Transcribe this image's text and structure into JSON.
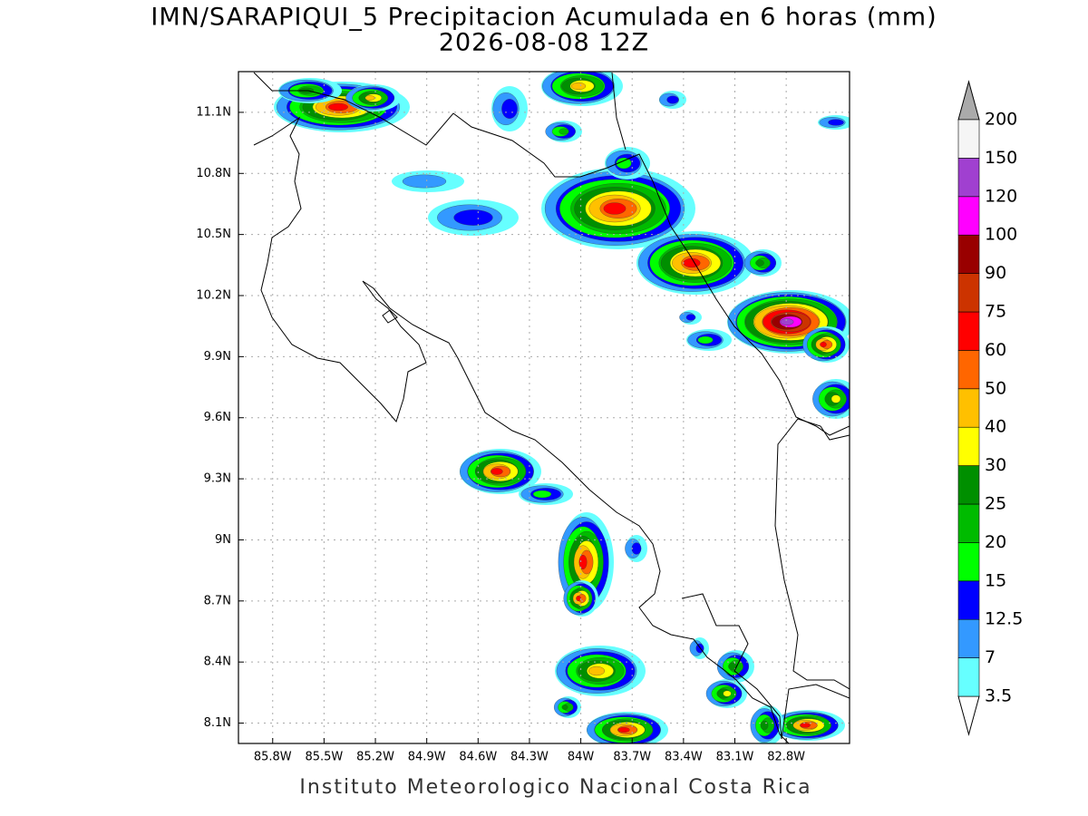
{
  "title": "IMN/SARAPIQUI_5 Precipitacion Acumulada en 6 horas (mm)",
  "subtitle": "2026-08-08 12Z",
  "footer": "Instituto Meteorologico Nacional Costa Rica",
  "map": {
    "xlim": [
      -86.0,
      -82.43
    ],
    "ylim": [
      8.0,
      11.3
    ],
    "grid": true,
    "xticks": [
      {
        "value": -85.8,
        "label": "85.8W"
      },
      {
        "value": -85.5,
        "label": "85.5W"
      },
      {
        "value": -85.2,
        "label": "85.2W"
      },
      {
        "value": -84.9,
        "label": "84.9W"
      },
      {
        "value": -84.6,
        "label": "84.6W"
      },
      {
        "value": -84.3,
        "label": "84.3W"
      },
      {
        "value": -84.0,
        "label": "84W"
      },
      {
        "value": -83.7,
        "label": "83.7W"
      },
      {
        "value": -83.4,
        "label": "83.4W"
      },
      {
        "value": -83.1,
        "label": "83.1W"
      },
      {
        "value": -82.8,
        "label": "82.8W"
      }
    ],
    "yticks": [
      {
        "value": 11.1,
        "label": "11.1N"
      },
      {
        "value": 10.8,
        "label": "10.8N"
      },
      {
        "value": 10.5,
        "label": "10.5N"
      },
      {
        "value": 10.2,
        "label": "10.2N"
      },
      {
        "value": 9.9,
        "label": "9.9N"
      },
      {
        "value": 9.6,
        "label": "9.6N"
      },
      {
        "value": 9.3,
        "label": "9.3N"
      },
      {
        "value": 9.0,
        "label": "9N"
      },
      {
        "value": 8.7,
        "label": "8.7N"
      },
      {
        "value": 8.4,
        "label": "8.4N"
      },
      {
        "value": 8.1,
        "label": "8.1N"
      }
    ]
  },
  "colorbar": {
    "levels": [
      3.5,
      7,
      12.5,
      15,
      20,
      25,
      30,
      40,
      50,
      60,
      75,
      90,
      100,
      120,
      150,
      200
    ],
    "colors": [
      "#ffffff",
      "#66ffff",
      "#3399ff",
      "#0000ff",
      "#00ff00",
      "#00bb00",
      "#008f00",
      "#ffff00",
      "#ffc000",
      "#ff6600",
      "#ff0000",
      "#cc3300",
      "#990000",
      "#ff00ff",
      "#a040d0",
      "#f5f5f5",
      "#aaaaaa"
    ]
  }
}
